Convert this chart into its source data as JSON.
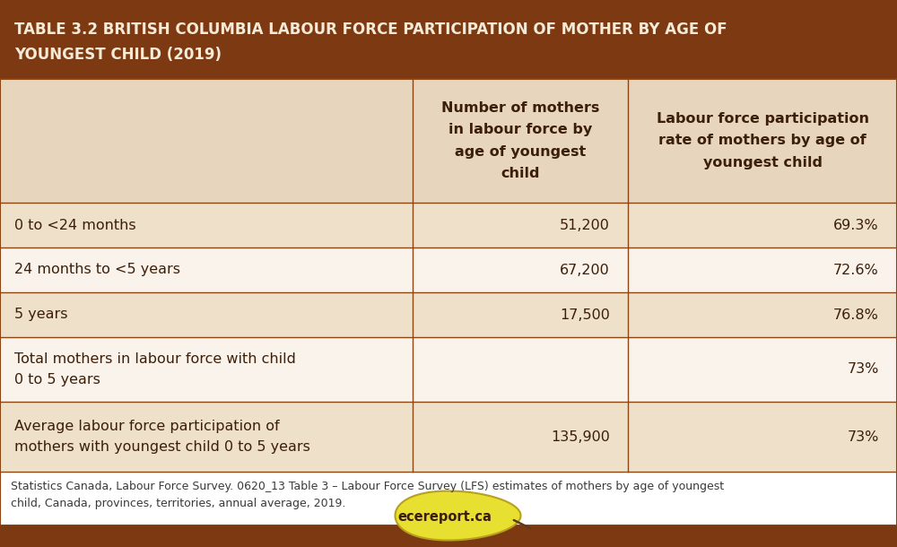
{
  "title_line1": "TABLE 3.2 BRITISH COLUMBIA LABOUR FORCE PARTICIPATION OF MOTHER BY AGE OF",
  "title_line2": "YOUNGEST CHILD (2019)",
  "title_bg": "#7D3912",
  "title_color": "#F5EBD8",
  "header_bg": "#E8D5BE",
  "data_text_color": "#3B1F0A",
  "row_bg_light": "#EFE0CA",
  "row_bg_white": "#FAF3EB",
  "border_color": "#8B4513",
  "footnote_bg": "#FFFFFF",
  "footer_bg": "#7D3912",
  "col_header1": "Number of mothers\nin labour force by\nage of youngest\nchild",
  "col_header2": "Labour force participation\nrate of mothers by age of\nyoungest child",
  "rows": [
    {
      "label": "0 to <24 months",
      "col1": "51,200",
      "col2": "69.3%",
      "bg": "#EFE0CA"
    },
    {
      "label": "24 months to <5 years",
      "col1": "67,200",
      "col2": "72.6%",
      "bg": "#FAF3EB"
    },
    {
      "label": "5 years",
      "col1": "17,500",
      "col2": "76.8%",
      "bg": "#EFE0CA"
    },
    {
      "label": "Total mothers in labour force with child\n0 to 5 years",
      "col1": "",
      "col2": "73%",
      "bg": "#FAF3EB"
    },
    {
      "label": "Average labour force participation of\nmothers with youngest child 0 to 5 years",
      "col1": "135,900",
      "col2": "73%",
      "bg": "#EFE0CA"
    }
  ],
  "footnote": "Statistics Canada, Labour Force Survey. 0620_13 Table 3 – Labour Force Survey (LFS) estimates of mothers by age of youngest\nchild, Canada, provinces, territories, annual average, 2019.",
  "logo_text": "ecereport.ca",
  "logo_bg": "#E8E830",
  "fig_width": 10.0,
  "fig_height": 6.1,
  "dpi": 100
}
